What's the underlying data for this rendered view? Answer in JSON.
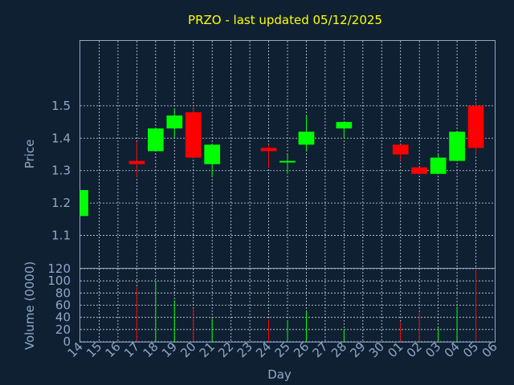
{
  "chart_data": {
    "type": "candlestick",
    "title": "PRZO - last updated 05/12/2025",
    "xlabel": "Day",
    "x_ticks": [
      "14",
      "15",
      "16",
      "17",
      "18",
      "19",
      "20",
      "21",
      "22",
      "23",
      "24",
      "25",
      "26",
      "27",
      "28",
      "29",
      "30",
      "01",
      "02",
      "03",
      "04",
      "05",
      "06"
    ],
    "price_panel": {
      "ylabel": "Price",
      "ylim": [
        1.0,
        1.7
      ],
      "y_ticks": [
        "1.1",
        "1.2",
        "1.3",
        "1.4",
        "1.5"
      ],
      "candles": [
        {
          "day": "14",
          "open": 1.16,
          "high": 1.24,
          "low": 1.16,
          "close": 1.24
        },
        {
          "day": "17",
          "open": 1.33,
          "high": 1.39,
          "low": 1.28,
          "close": 1.32
        },
        {
          "day": "18",
          "open": 1.36,
          "high": 1.43,
          "low": 1.36,
          "close": 1.43
        },
        {
          "day": "19",
          "open": 1.43,
          "high": 1.49,
          "low": 1.4,
          "close": 1.47
        },
        {
          "day": "20",
          "open": 1.48,
          "high": 1.5,
          "low": 1.34,
          "close": 1.34
        },
        {
          "day": "21",
          "open": 1.32,
          "high": 1.38,
          "low": 1.28,
          "close": 1.38
        },
        {
          "day": "24",
          "open": 1.37,
          "high": 1.38,
          "low": 1.31,
          "close": 1.36
        },
        {
          "day": "25",
          "open": 1.33,
          "high": 1.35,
          "low": 1.29,
          "close": 1.33
        },
        {
          "day": "26",
          "open": 1.38,
          "high": 1.47,
          "low": 1.36,
          "close": 1.42
        },
        {
          "day": "28",
          "open": 1.43,
          "high": 1.45,
          "low": 1.4,
          "close": 1.45
        },
        {
          "day": "01",
          "open": 1.38,
          "high": 1.38,
          "low": 1.33,
          "close": 1.35
        },
        {
          "day": "02",
          "open": 1.31,
          "high": 1.31,
          "low": 1.29,
          "close": 1.29
        },
        {
          "day": "03",
          "open": 1.29,
          "high": 1.35,
          "low": 1.29,
          "close": 1.34
        },
        {
          "day": "04",
          "open": 1.33,
          "high": 1.42,
          "low": 1.33,
          "close": 1.42
        },
        {
          "day": "05",
          "open": 1.5,
          "high": 1.51,
          "low": 1.35,
          "close": 1.37
        }
      ]
    },
    "volume_panel": {
      "ylabel": "Volume (0000)",
      "ylim": [
        0,
        120
      ],
      "y_ticks": [
        "0",
        "20",
        "40",
        "60",
        "80",
        "100",
        "120"
      ],
      "bars": [
        {
          "day": "17",
          "volume": 90,
          "direction": "down"
        },
        {
          "day": "18",
          "volume": 100,
          "direction": "up"
        },
        {
          "day": "19",
          "volume": 68,
          "direction": "up"
        },
        {
          "day": "20",
          "volume": 55,
          "direction": "down"
        },
        {
          "day": "21",
          "volume": 38,
          "direction": "up"
        },
        {
          "day": "24",
          "volume": 36,
          "direction": "down"
        },
        {
          "day": "25",
          "volume": 35,
          "direction": "up"
        },
        {
          "day": "26",
          "volume": 50,
          "direction": "up"
        },
        {
          "day": "28",
          "volume": 20,
          "direction": "up"
        },
        {
          "day": "01",
          "volume": 32,
          "direction": "down"
        },
        {
          "day": "02",
          "volume": 48,
          "direction": "down"
        },
        {
          "day": "03",
          "volume": 22,
          "direction": "up"
        },
        {
          "day": "04",
          "volume": 58,
          "direction": "up"
        },
        {
          "day": "05",
          "volume": 120,
          "direction": "down"
        }
      ]
    },
    "grid": true,
    "colors": {
      "up": "#00ff00",
      "down": "#ff0000",
      "background": "#0f2033",
      "title": "#ffff00",
      "axis": "#8fa8c8"
    }
  }
}
